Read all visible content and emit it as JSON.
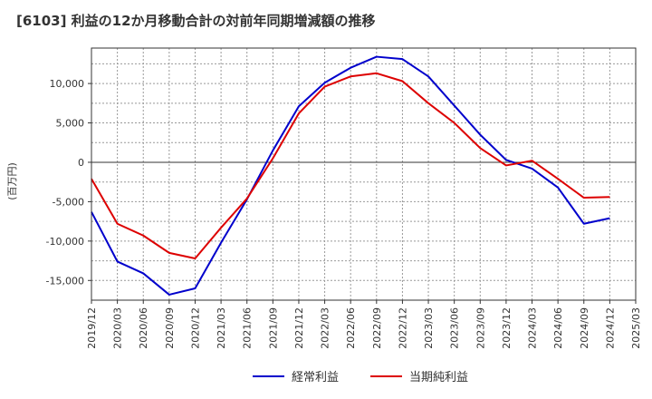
{
  "chart_data": {
    "type": "line",
    "title": "[6103]  利益の12か月移動合計の対前年同期増減額の推移",
    "xlabel": "",
    "ylabel": "(百万円)",
    "x": [
      "2019/12",
      "2020/03",
      "2020/06",
      "2020/09",
      "2020/12",
      "2021/03",
      "2021/06",
      "2021/09",
      "2021/12",
      "2022/03",
      "2022/06",
      "2022/09",
      "2022/12",
      "2023/03",
      "2023/06",
      "2023/09",
      "2023/12",
      "2024/03",
      "2024/06",
      "2024/09",
      "2024/12",
      "2025/03"
    ],
    "ylim": [
      -17500,
      14500
    ],
    "yticks": [
      -15000,
      -10000,
      -5000,
      0,
      5000,
      10000
    ],
    "ytick_labels": [
      "-15,000",
      "-10,000",
      "-5,000",
      "0",
      "5,000",
      "10,000"
    ],
    "grid": true,
    "legend_position": "bottom-center",
    "series": [
      {
        "name": "経常利益",
        "color": "#0000cc",
        "values": [
          -6300,
          -12600,
          -14100,
          -16800,
          -16000,
          -10200,
          -4700,
          1500,
          7100,
          10100,
          12000,
          13400,
          13100,
          10900,
          7200,
          3500,
          300,
          -800,
          -3200,
          -7800,
          -7100,
          null
        ]
      },
      {
        "name": "当期純利益",
        "color": "#dd0000",
        "values": [
          -2100,
          -7800,
          -9300,
          -11500,
          -12200,
          -8300,
          -4600,
          500,
          6200,
          9600,
          10900,
          11300,
          10300,
          7500,
          5000,
          1800,
          -400,
          200,
          -2100,
          -4500,
          -4400,
          null
        ]
      }
    ]
  }
}
